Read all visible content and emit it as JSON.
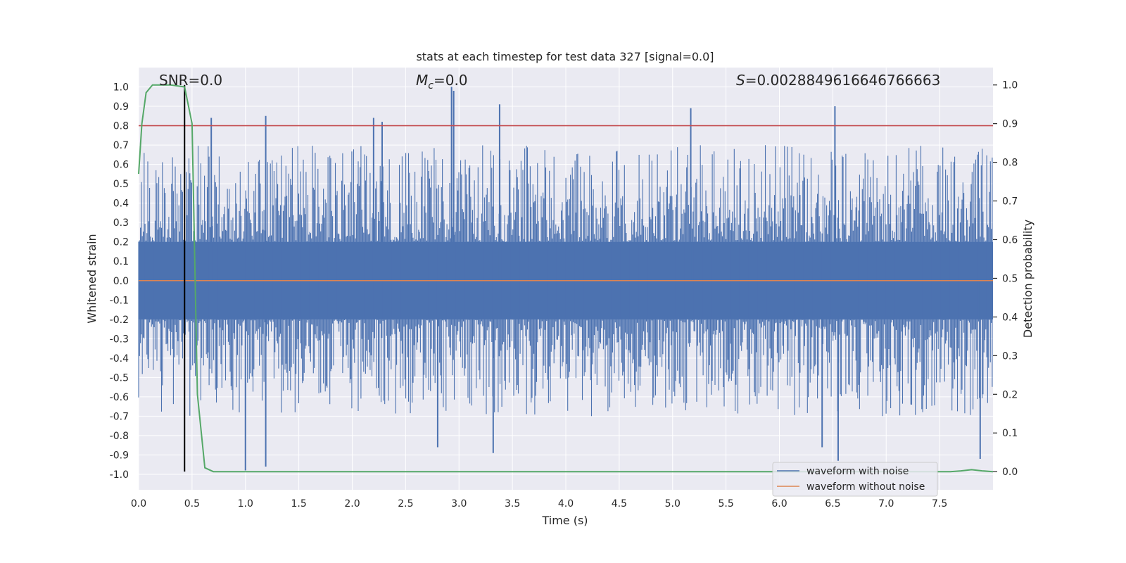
{
  "chart_data": {
    "type": "line",
    "title": "stats at each timestep for test data 327 [signal=0.0]",
    "xlabel": "Time (s)",
    "ylabel_left": "Whitened strain",
    "ylabel_right": "Detection probability",
    "xlim": [
      0.0,
      8.0
    ],
    "ylim_left": [
      -1.08,
      1.1
    ],
    "ylim_right": [
      -0.047,
      1.045
    ],
    "xticks": [
      0.0,
      0.5,
      1.0,
      1.5,
      2.0,
      2.5,
      3.0,
      3.5,
      4.0,
      4.5,
      5.0,
      5.5,
      6.0,
      6.5,
      7.0,
      7.5
    ],
    "xtick_labels": [
      "0.0",
      "0.5",
      "1.0",
      "1.5",
      "2.0",
      "2.5",
      "3.0",
      "3.5",
      "4.0",
      "4.5",
      "5.0",
      "5.5",
      "6.0",
      "6.5",
      "7.0",
      "7.5"
    ],
    "yticks_left": [
      1.0,
      0.9,
      0.8,
      0.7,
      0.6,
      0.5,
      0.4,
      0.3,
      0.2,
      0.1,
      0.0,
      -0.1,
      -0.2,
      -0.3,
      -0.4,
      -0.5,
      -0.6,
      -0.7,
      -0.8,
      -0.9,
      -1.0
    ],
    "ytick_labels_left": [
      "1.0",
      "0.9",
      "0.8",
      "0.7",
      "0.6",
      "0.5",
      "0.4",
      "0.3",
      "0.2",
      "0.1",
      "0.0",
      "-0.1",
      "-0.2",
      "-0.3",
      "-0.4",
      "-0.5",
      "-0.6",
      "-0.7",
      "-0.8",
      "-0.9",
      "-1.0"
    ],
    "yticks_right": [
      1.0,
      0.9,
      0.8,
      0.7,
      0.6,
      0.5,
      0.4,
      0.3,
      0.2,
      0.1,
      0.0
    ],
    "ytick_labels_right": [
      "1.0",
      "0.9",
      "0.8",
      "0.7",
      "0.6",
      "0.5",
      "0.4",
      "0.3",
      "0.2",
      "0.1",
      "0.0"
    ],
    "grid": true,
    "annotations": {
      "snr": "SNR=0.0",
      "mc_symbol": "M",
      "mc_subscript": "c",
      "mc_value": "=0.0",
      "s_symbol": "S",
      "s_value": "=0.0028849616646766663"
    },
    "threshold_line": {
      "y": 0.8,
      "color": "#c44e52"
    },
    "marker_line": {
      "x": 0.43,
      "color": "#000000"
    },
    "series": [
      {
        "name": "waveform with noise",
        "axis": "left",
        "color": "#4c72b0",
        "style": "dense noise",
        "envelope_typical": [
          -0.45,
          0.45
        ],
        "peaks": [
          {
            "x": 2.93,
            "y": 1.0
          },
          {
            "x": 2.95,
            "y": 0.98
          },
          {
            "x": 3.38,
            "y": 0.91
          },
          {
            "x": 6.52,
            "y": 0.9
          },
          {
            "x": 5.17,
            "y": 0.89
          },
          {
            "x": 1.19,
            "y": 0.85
          },
          {
            "x": 0.68,
            "y": 0.84
          },
          {
            "x": 2.2,
            "y": 0.84
          },
          {
            "x": 2.28,
            "y": 0.82
          }
        ],
        "troughs": [
          {
            "x": 1.0,
            "y": -0.98
          },
          {
            "x": 1.19,
            "y": -0.96
          },
          {
            "x": 6.55,
            "y": -0.93
          },
          {
            "x": 7.88,
            "y": -0.92
          },
          {
            "x": 3.32,
            "y": -0.89
          },
          {
            "x": 6.4,
            "y": -0.86
          },
          {
            "x": 2.8,
            "y": -0.86
          }
        ]
      },
      {
        "name": "waveform without noise",
        "axis": "left",
        "color": "#dd8452",
        "x": [
          0.0,
          8.0
        ],
        "values": [
          0.0,
          0.0
        ]
      },
      {
        "name": "",
        "axis": "right",
        "color": "#55a868",
        "x": [
          0.0,
          0.03,
          0.07,
          0.13,
          0.2,
          0.3,
          0.43,
          0.5,
          0.55,
          0.62,
          0.7,
          1.0,
          2.0,
          3.0,
          4.0,
          5.0,
          6.0,
          7.0,
          7.5,
          7.6,
          7.7,
          7.8,
          7.9,
          8.0
        ],
        "values": [
          0.77,
          0.9,
          0.98,
          1.0,
          1.0,
          1.0,
          0.995,
          0.9,
          0.2,
          0.01,
          0.0,
          0.0,
          0.0,
          0.0,
          0.0,
          0.0,
          0.0,
          0.0,
          0.0,
          0.0,
          0.002,
          0.005,
          0.002,
          0.0
        ]
      }
    ],
    "legend": {
      "placement": "lower-right",
      "entries": [
        {
          "label": "waveform with noise",
          "color": "#4c72b0"
        },
        {
          "label": "waveform without noise",
          "color": "#dd8452"
        }
      ]
    }
  }
}
